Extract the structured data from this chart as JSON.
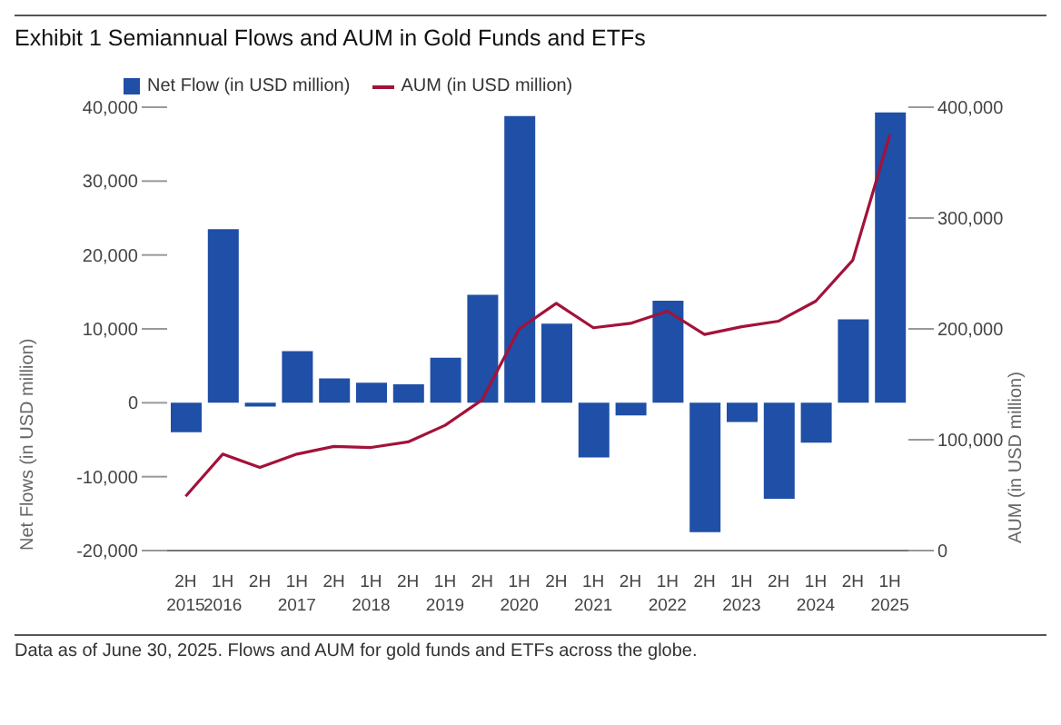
{
  "chart_data": {
    "type": "bar",
    "title": "Exhibit 1 Semiannual Flows and AUM in Gold Funds and ETFs",
    "categories": [
      "2H\n2015",
      "1H\n2016",
      "2H",
      "1H\n2017",
      "2H",
      "1H\n2018",
      "2H",
      "1H\n2019",
      "2H",
      "1H\n2020",
      "2H",
      "1H\n2021",
      "2H",
      "1H\n2022",
      "2H",
      "1H\n2023",
      "2H",
      "1H\n2024",
      "2H",
      "1H\n2025"
    ],
    "series": [
      {
        "name": "Net Flow (in USD million)",
        "color": "#1f4fa6",
        "values": [
          -4000,
          23500,
          -500,
          7000,
          3300,
          2700,
          2500,
          6100,
          14600,
          38800,
          10700,
          -7400,
          -1700,
          13800,
          -17500,
          -2600,
          -13000,
          -5400,
          11300,
          39300
        ]
      },
      {
        "name": "AUM (in USD million)",
        "type": "line",
        "axis": "y2",
        "color": "#a3123a",
        "values": [
          49000,
          87000,
          75000,
          87000,
          94000,
          93000,
          98000,
          113000,
          136000,
          200000,
          223000,
          201000,
          205000,
          216000,
          195000,
          202000,
          207000,
          225000,
          262000,
          375000
        ]
      }
    ],
    "ylabel": "Net Flows (in USD million)",
    "y2label": "AUM (in USD million)",
    "ylim": [
      -20000,
      40000
    ],
    "yticks": [
      {
        "value": -20000,
        "label": "-20,000"
      },
      {
        "value": -10000,
        "label": "-10,000"
      },
      0,
      {
        "value": 10000,
        "label": "10,000"
      },
      {
        "value": 20000,
        "label": "20,000"
      },
      {
        "value": 30000,
        "label": "30,000"
      },
      {
        "value": 40000,
        "label": "40,000"
      }
    ],
    "y2lim": [
      0,
      400000
    ],
    "y2ticks": [
      0,
      {
        "value": 100000,
        "label": "100,000"
      },
      {
        "value": 200000,
        "label": "200,000"
      },
      {
        "value": 300000,
        "label": "300,000"
      },
      {
        "value": 400000,
        "label": "400,000"
      }
    ],
    "legend": "top left",
    "marker": "none",
    "annotations": [
      "Data as of June 30, 2025. Flows and AUM for gold funds and ETFs across the globe."
    ]
  }
}
